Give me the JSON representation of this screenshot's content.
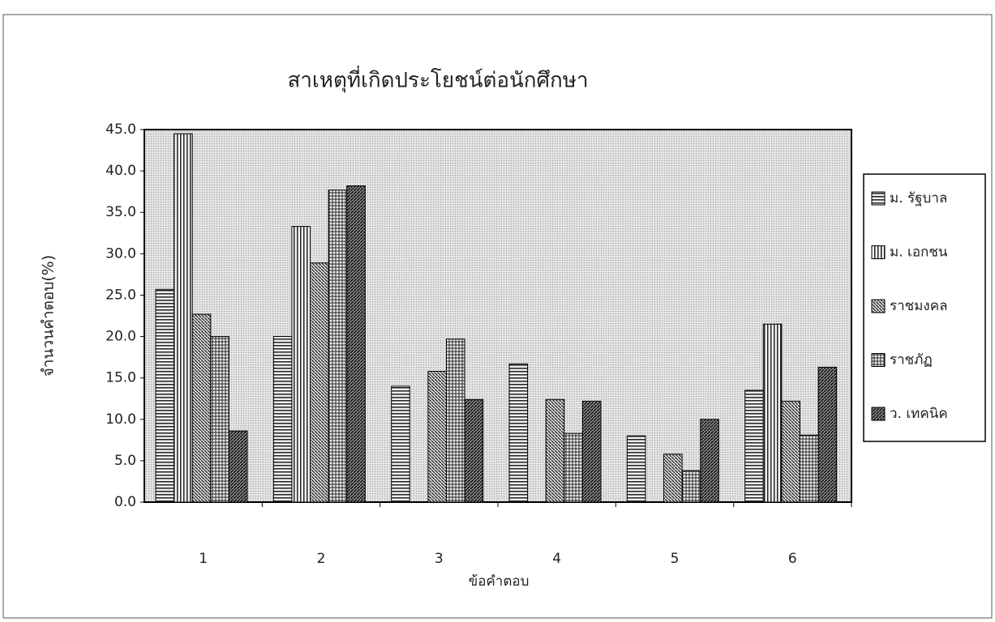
{
  "chart_data": {
    "type": "bar",
    "title": "สาเหตุที่เกิดประโยชน์ต่อนักศึกษา",
    "x_label": "ข้อคำตอบ",
    "y_label": "จำนวนคำตอบ(%)",
    "categories": [
      "1",
      "2",
      "3",
      "4",
      "5",
      "6"
    ],
    "series": [
      {
        "name": "ม. รัฐบาล",
        "values": [
          25.7,
          20.0,
          14.0,
          16.7,
          8.0,
          13.5
        ]
      },
      {
        "name": "ม. เอกชน",
        "values": [
          44.5,
          33.3,
          0,
          0,
          0,
          21.5
        ]
      },
      {
        "name": "ราชมงคล",
        "values": [
          22.7,
          28.9,
          15.8,
          12.4,
          5.8,
          12.2
        ]
      },
      {
        "name": "ราชภัฏ",
        "values": [
          20.0,
          37.7,
          19.7,
          8.3,
          3.8,
          8.1
        ]
      },
      {
        "name": "ว. เทคนิค",
        "values": [
          8.6,
          38.2,
          12.4,
          12.2,
          10.0,
          16.3
        ]
      }
    ],
    "ylim": [
      0,
      45
    ],
    "yticks": [
      {
        "value": 0,
        "label": "0.0"
      },
      {
        "value": 5,
        "label": "5.0"
      },
      {
        "value": 10,
        "label": "10.0"
      },
      {
        "value": 15,
        "label": "15.0"
      },
      {
        "value": 20,
        "label": "20.0"
      },
      {
        "value": 25,
        "label": "25.0"
      },
      {
        "value": 30,
        "label": "30.0"
      },
      {
        "value": 35,
        "label": "35.0"
      },
      {
        "value": 40,
        "label": "40.0"
      },
      {
        "value": 45,
        "label": "45.0"
      }
    ],
    "legend": "right"
  }
}
